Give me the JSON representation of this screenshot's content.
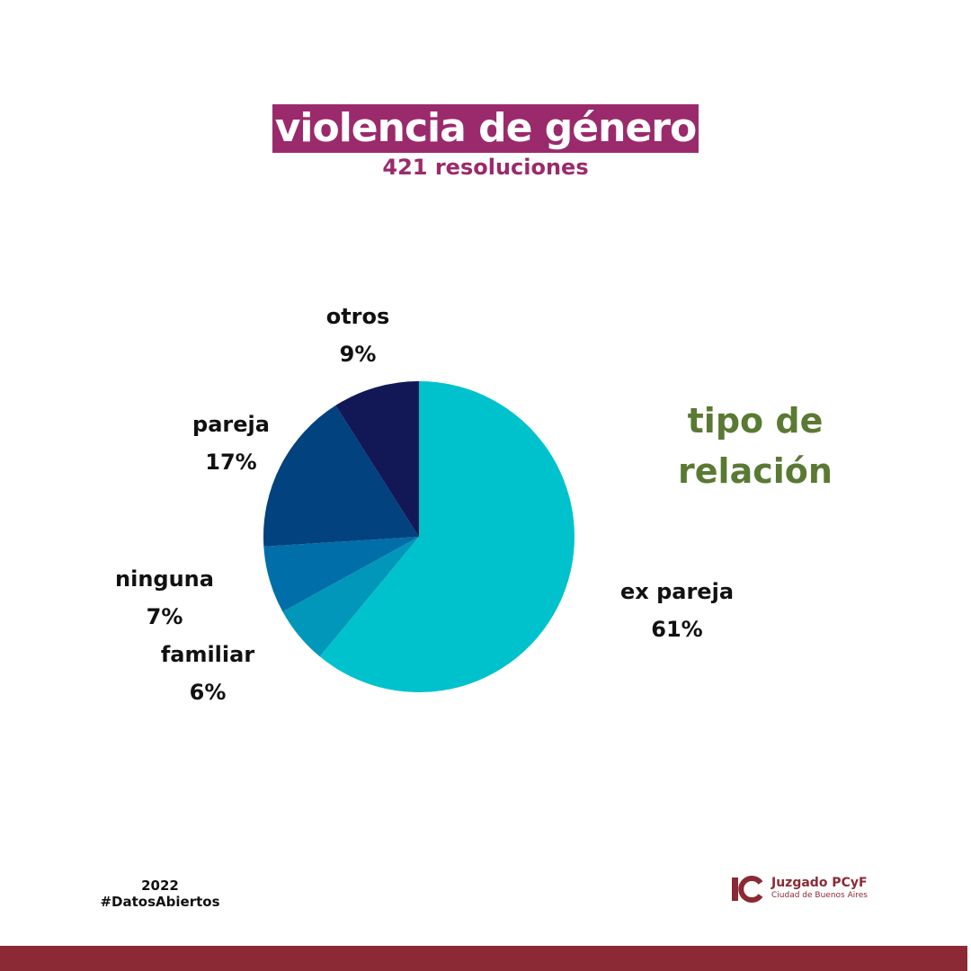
{
  "header": {
    "title": "violencia de género",
    "subtitle": "421 resoluciones"
  },
  "side_label": {
    "line1": "tipo de",
    "line2": "relación",
    "color": "#5a7a33"
  },
  "chart_data": {
    "type": "pie",
    "title": "tipo de relación",
    "slices": [
      {
        "label": "ex pareja",
        "value": 61,
        "value_label": "61%",
        "color": "#00c2cd"
      },
      {
        "label": "familiar",
        "value": 6,
        "value_label": "6%",
        "color": "#0097ba"
      },
      {
        "label": "ninguna",
        "value": 7,
        "value_label": "7%",
        "color": "#006ea8"
      },
      {
        "label": "pareja",
        "value": 17,
        "value_label": "17%",
        "color": "#02427e"
      },
      {
        "label": "otros",
        "value": 9,
        "value_label": "9%",
        "color": "#121856"
      }
    ]
  },
  "footer": {
    "year": "2022",
    "hashtag": "#DatosAbiertos",
    "logo_name": "Juzgado PCyF",
    "logo_city": "Ciudad de Buenos Aires"
  },
  "colors": {
    "title_bg": "#9b2a6c",
    "brand": "#8b2a34"
  }
}
